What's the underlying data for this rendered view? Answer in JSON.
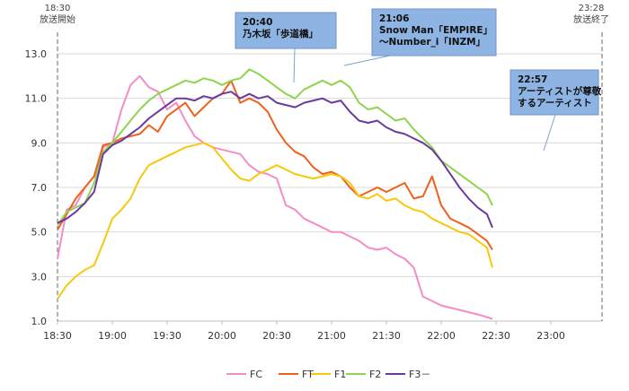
{
  "chart_data": {
    "type": "line",
    "y_range": [
      1.0,
      13.0
    ],
    "y_ticks": [
      "1.0",
      "3.0",
      "5.0",
      "7.0",
      "9.0",
      "11.0",
      "13.0"
    ],
    "x_ticks": [
      "18:30",
      "19:00",
      "19:30",
      "20:00",
      "20:30",
      "21:00",
      "21:30",
      "22:00",
      "22:30",
      "23:00"
    ],
    "markers": [
      {
        "time": "18:30",
        "label": "放送開始"
      },
      {
        "time": "23:28",
        "label": "放送終了"
      }
    ],
    "callouts": [
      {
        "time": "20:40",
        "lines": [
          "20:40",
          "乃木坂「歩道橋」"
        ]
      },
      {
        "time": "21:06",
        "lines": [
          "21:06",
          "Snow Man「EMPIRE」",
          "～Number_i「INZM」"
        ]
      },
      {
        "time": "22:57",
        "lines": [
          "22:57",
          "アーティストが尊敬",
          "するアーティスト"
        ]
      }
    ],
    "series": [
      {
        "name": "FC",
        "color": "#f48cc8",
        "points": [
          [
            0,
            3.8
          ],
          [
            5,
            6.0
          ],
          [
            10,
            6.2
          ],
          [
            15,
            7.0
          ],
          [
            20,
            7.5
          ],
          [
            25,
            8.8
          ],
          [
            30,
            9.0
          ],
          [
            35,
            10.5
          ],
          [
            40,
            11.6
          ],
          [
            45,
            12.0
          ],
          [
            50,
            11.5
          ],
          [
            55,
            11.3
          ],
          [
            60,
            10.5
          ],
          [
            65,
            10.8
          ],
          [
            70,
            10.0
          ],
          [
            75,
            9.3
          ],
          [
            80,
            9.0
          ],
          [
            85,
            8.8
          ],
          [
            90,
            8.7
          ],
          [
            95,
            8.6
          ],
          [
            100,
            8.5
          ],
          [
            105,
            8.0
          ],
          [
            110,
            7.7
          ],
          [
            115,
            7.6
          ],
          [
            120,
            7.4
          ],
          [
            125,
            6.2
          ],
          [
            130,
            6.0
          ],
          [
            135,
            5.6
          ],
          [
            140,
            5.4
          ],
          [
            145,
            5.2
          ],
          [
            150,
            5.0
          ],
          [
            155,
            5.0
          ],
          [
            160,
            4.8
          ],
          [
            165,
            4.6
          ],
          [
            170,
            4.3
          ],
          [
            175,
            4.2
          ],
          [
            180,
            4.3
          ],
          [
            185,
            4.0
          ],
          [
            190,
            3.8
          ],
          [
            195,
            3.4
          ],
          [
            200,
            2.1
          ],
          [
            205,
            1.9
          ],
          [
            210,
            1.7
          ],
          [
            215,
            1.6
          ],
          [
            220,
            1.5
          ],
          [
            225,
            1.4
          ],
          [
            230,
            1.3
          ],
          [
            238,
            1.1
          ]
        ]
      },
      {
        "name": "FT",
        "color": "#f0601c",
        "points": [
          [
            0,
            5.1
          ],
          [
            5,
            5.8
          ],
          [
            10,
            6.5
          ],
          [
            15,
            7.0
          ],
          [
            20,
            7.5
          ],
          [
            25,
            8.9
          ],
          [
            30,
            9.0
          ],
          [
            35,
            9.2
          ],
          [
            40,
            9.3
          ],
          [
            45,
            9.4
          ],
          [
            50,
            9.8
          ],
          [
            55,
            9.5
          ],
          [
            60,
            10.2
          ],
          [
            65,
            10.5
          ],
          [
            70,
            10.8
          ],
          [
            75,
            10.2
          ],
          [
            80,
            10.6
          ],
          [
            85,
            11.0
          ],
          [
            90,
            11.2
          ],
          [
            95,
            11.8
          ],
          [
            100,
            10.8
          ],
          [
            105,
            11.0
          ],
          [
            110,
            10.8
          ],
          [
            115,
            10.4
          ],
          [
            120,
            9.6
          ],
          [
            125,
            9.0
          ],
          [
            130,
            8.6
          ],
          [
            135,
            8.4
          ],
          [
            140,
            7.9
          ],
          [
            145,
            7.6
          ],
          [
            150,
            7.7
          ],
          [
            155,
            7.5
          ],
          [
            160,
            7.0
          ],
          [
            165,
            6.6
          ],
          [
            170,
            6.8
          ],
          [
            175,
            7.0
          ],
          [
            180,
            6.8
          ],
          [
            185,
            7.0
          ],
          [
            190,
            7.2
          ],
          [
            195,
            6.5
          ],
          [
            200,
            6.6
          ],
          [
            205,
            7.5
          ],
          [
            210,
            6.2
          ],
          [
            215,
            5.6
          ],
          [
            220,
            5.4
          ],
          [
            225,
            5.2
          ],
          [
            230,
            4.9
          ],
          [
            235,
            4.6
          ],
          [
            238,
            4.2
          ]
        ]
      },
      {
        "name": "F1",
        "color": "#f8c80a",
        "points": [
          [
            0,
            2.0
          ],
          [
            5,
            2.6
          ],
          [
            10,
            3.0
          ],
          [
            15,
            3.3
          ],
          [
            20,
            3.5
          ],
          [
            25,
            4.5
          ],
          [
            30,
            5.6
          ],
          [
            35,
            6.0
          ],
          [
            40,
            6.5
          ],
          [
            45,
            7.4
          ],
          [
            50,
            8.0
          ],
          [
            55,
            8.2
          ],
          [
            60,
            8.4
          ],
          [
            65,
            8.6
          ],
          [
            70,
            8.8
          ],
          [
            75,
            8.9
          ],
          [
            80,
            9.0
          ],
          [
            85,
            8.8
          ],
          [
            90,
            8.3
          ],
          [
            95,
            7.8
          ],
          [
            100,
            7.4
          ],
          [
            105,
            7.3
          ],
          [
            110,
            7.6
          ],
          [
            115,
            7.8
          ],
          [
            120,
            8.0
          ],
          [
            125,
            7.8
          ],
          [
            130,
            7.6
          ],
          [
            135,
            7.5
          ],
          [
            140,
            7.4
          ],
          [
            145,
            7.5
          ],
          [
            150,
            7.6
          ],
          [
            155,
            7.5
          ],
          [
            160,
            7.2
          ],
          [
            165,
            6.6
          ],
          [
            170,
            6.5
          ],
          [
            175,
            6.7
          ],
          [
            180,
            6.4
          ],
          [
            185,
            6.5
          ],
          [
            190,
            6.2
          ],
          [
            195,
            6.0
          ],
          [
            200,
            5.9
          ],
          [
            205,
            5.6
          ],
          [
            210,
            5.4
          ],
          [
            215,
            5.2
          ],
          [
            220,
            5.0
          ],
          [
            225,
            4.9
          ],
          [
            230,
            4.6
          ],
          [
            235,
            4.3
          ],
          [
            238,
            3.4
          ]
        ]
      },
      {
        "name": "F2",
        "color": "#8ed44e",
        "points": [
          [
            0,
            5.3
          ],
          [
            5,
            5.9
          ],
          [
            10,
            6.1
          ],
          [
            15,
            6.3
          ],
          [
            20,
            7.2
          ],
          [
            25,
            8.6
          ],
          [
            30,
            9.0
          ],
          [
            35,
            9.5
          ],
          [
            40,
            10.0
          ],
          [
            45,
            10.5
          ],
          [
            50,
            10.9
          ],
          [
            55,
            11.2
          ],
          [
            60,
            11.4
          ],
          [
            65,
            11.6
          ],
          [
            70,
            11.8
          ],
          [
            75,
            11.7
          ],
          [
            80,
            11.9
          ],
          [
            85,
            11.8
          ],
          [
            90,
            11.6
          ],
          [
            95,
            11.8
          ],
          [
            100,
            11.9
          ],
          [
            105,
            12.3
          ],
          [
            110,
            12.1
          ],
          [
            115,
            11.8
          ],
          [
            120,
            11.5
          ],
          [
            125,
            11.2
          ],
          [
            130,
            11.0
          ],
          [
            135,
            11.4
          ],
          [
            140,
            11.6
          ],
          [
            145,
            11.8
          ],
          [
            150,
            11.6
          ],
          [
            155,
            11.8
          ],
          [
            160,
            11.5
          ],
          [
            165,
            10.8
          ],
          [
            170,
            10.5
          ],
          [
            175,
            10.6
          ],
          [
            180,
            10.3
          ],
          [
            185,
            10.0
          ],
          [
            190,
            10.1
          ],
          [
            195,
            9.6
          ],
          [
            200,
            9.2
          ],
          [
            205,
            8.8
          ],
          [
            210,
            8.2
          ],
          [
            215,
            7.9
          ],
          [
            220,
            7.6
          ],
          [
            225,
            7.3
          ],
          [
            230,
            7.0
          ],
          [
            235,
            6.7
          ],
          [
            238,
            6.2
          ]
        ]
      },
      {
        "name": "F3－",
        "color": "#6a3a9e",
        "points": [
          [
            0,
            5.4
          ],
          [
            5,
            5.6
          ],
          [
            10,
            5.9
          ],
          [
            15,
            6.3
          ],
          [
            20,
            6.8
          ],
          [
            25,
            8.5
          ],
          [
            30,
            8.9
          ],
          [
            35,
            9.1
          ],
          [
            40,
            9.4
          ],
          [
            45,
            9.7
          ],
          [
            50,
            10.1
          ],
          [
            55,
            10.4
          ],
          [
            60,
            10.7
          ],
          [
            65,
            11.0
          ],
          [
            70,
            11.0
          ],
          [
            75,
            10.9
          ],
          [
            80,
            11.1
          ],
          [
            85,
            11.0
          ],
          [
            90,
            11.2
          ],
          [
            95,
            11.3
          ],
          [
            100,
            11.0
          ],
          [
            105,
            11.2
          ],
          [
            110,
            11.0
          ],
          [
            115,
            11.1
          ],
          [
            120,
            10.8
          ],
          [
            125,
            10.7
          ],
          [
            130,
            10.6
          ],
          [
            135,
            10.8
          ],
          [
            140,
            10.9
          ],
          [
            145,
            11.0
          ],
          [
            150,
            10.8
          ],
          [
            155,
            10.9
          ],
          [
            160,
            10.4
          ],
          [
            165,
            10.0
          ],
          [
            170,
            9.9
          ],
          [
            175,
            10.0
          ],
          [
            180,
            9.7
          ],
          [
            185,
            9.5
          ],
          [
            190,
            9.4
          ],
          [
            195,
            9.2
          ],
          [
            200,
            9.0
          ],
          [
            205,
            8.7
          ],
          [
            210,
            8.2
          ],
          [
            215,
            7.6
          ],
          [
            220,
            7.0
          ],
          [
            225,
            6.5
          ],
          [
            230,
            6.1
          ],
          [
            235,
            5.8
          ],
          [
            238,
            5.2
          ]
        ]
      }
    ]
  }
}
